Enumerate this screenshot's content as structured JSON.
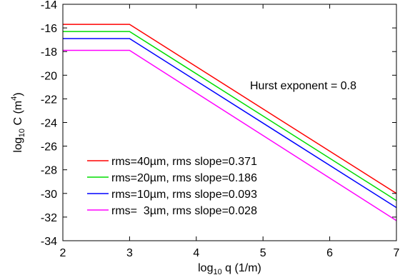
{
  "chart_data": {
    "type": "line",
    "title": "",
    "xlabel": {
      "prefix": "log",
      "sub": "10",
      "main": " q  (1/m)"
    },
    "ylabel": {
      "prefix": "log",
      "sub": "10",
      "main": " C  (m",
      "sup": "4",
      "suffix": ")"
    },
    "xlim": [
      2,
      7
    ],
    "ylim": [
      -34,
      -14
    ],
    "xticks": [
      2,
      3,
      4,
      5,
      6,
      7
    ],
    "yticks": [
      -34,
      -32,
      -30,
      -28,
      -26,
      -24,
      -22,
      -20,
      -18,
      -16,
      -14
    ],
    "grid": false,
    "legend_position": "bottom-left",
    "annotation": "Hurst exponent = 0.8",
    "series": [
      {
        "name": "rms=40µm, rms slope=0.371",
        "color": "#ff0000",
        "x": [
          2,
          3,
          7
        ],
        "y": [
          -15.7,
          -15.7,
          -30.0
        ]
      },
      {
        "name": "rms=20µm, rms slope=0.186",
        "color": "#00dd00",
        "x": [
          2,
          3,
          7
        ],
        "y": [
          -16.3,
          -16.3,
          -30.6
        ]
      },
      {
        "name": "rms=10µm, rms slope=0.093",
        "color": "#0000ff",
        "x": [
          2,
          3,
          7
        ],
        "y": [
          -16.9,
          -16.9,
          -31.2
        ]
      },
      {
        "name": "rms=  3µm, rms slope=0.028",
        "color": "#ff00ff",
        "x": [
          2,
          3,
          7
        ],
        "y": [
          -17.9,
          -17.9,
          -32.3
        ]
      }
    ]
  }
}
